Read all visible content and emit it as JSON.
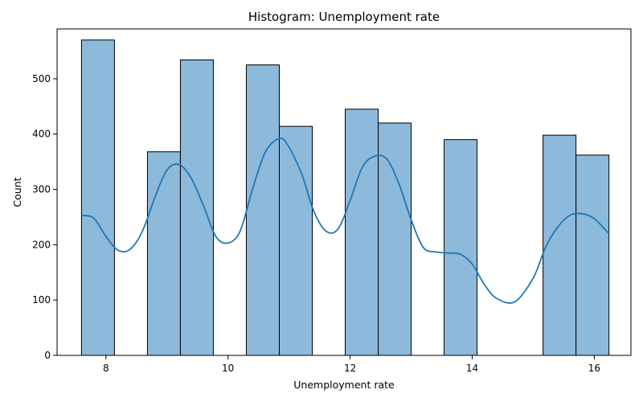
{
  "chart_data": {
    "type": "bar",
    "title": "Histogram: Unemployment rate",
    "xlabel": "Unemployment rate",
    "ylabel": "Count",
    "xlim": [
      7.2,
      16.6
    ],
    "ylim": [
      0,
      590
    ],
    "xticks": [
      8,
      10,
      12,
      14,
      16
    ],
    "yticks": [
      0,
      100,
      200,
      300,
      400,
      500
    ],
    "grid": false,
    "bar_color": "#8db9db",
    "line_color": "#1f77b4",
    "bins": [
      {
        "x0": 7.6,
        "x1": 8.14,
        "count": 570
      },
      {
        "x0": 8.14,
        "x1": 8.68,
        "count": 0
      },
      {
        "x0": 8.68,
        "x1": 9.22,
        "count": 368
      },
      {
        "x0": 9.22,
        "x1": 9.76,
        "count": 534
      },
      {
        "x0": 9.76,
        "x1": 10.3,
        "count": 0
      },
      {
        "x0": 10.3,
        "x1": 10.84,
        "count": 525
      },
      {
        "x0": 10.84,
        "x1": 11.38,
        "count": 414
      },
      {
        "x0": 11.38,
        "x1": 11.92,
        "count": 0
      },
      {
        "x0": 11.92,
        "x1": 12.46,
        "count": 445
      },
      {
        "x0": 12.46,
        "x1": 13.0,
        "count": 420
      },
      {
        "x0": 13.0,
        "x1": 13.54,
        "count": 0
      },
      {
        "x0": 13.54,
        "x1": 14.08,
        "count": 390
      },
      {
        "x0": 14.08,
        "x1": 14.62,
        "count": 0
      },
      {
        "x0": 14.62,
        "x1": 15.16,
        "count": 0
      },
      {
        "x0": 15.16,
        "x1": 15.7,
        "count": 398
      },
      {
        "x0": 15.7,
        "x1": 16.24,
        "count": 362
      }
    ],
    "kde": {
      "x": [
        7.6,
        7.8,
        8.0,
        8.2,
        8.4,
        8.6,
        8.8,
        9.0,
        9.2,
        9.4,
        9.6,
        9.8,
        10.0,
        10.2,
        10.4,
        10.6,
        10.8,
        10.95,
        11.2,
        11.4,
        11.6,
        11.8,
        12.0,
        12.2,
        12.4,
        12.6,
        12.8,
        13.0,
        13.2,
        13.4,
        13.6,
        13.8,
        14.0,
        14.2,
        14.4,
        14.7,
        15.0,
        15.2,
        15.4,
        15.6,
        15.8,
        16.0,
        16.24
      ],
      "y": [
        253,
        248,
        215,
        190,
        192,
        225,
        285,
        335,
        345,
        320,
        270,
        215,
        203,
        225,
        300,
        365,
        390,
        385,
        330,
        262,
        225,
        228,
        280,
        340,
        360,
        355,
        310,
        245,
        195,
        187,
        185,
        183,
        165,
        128,
        103,
        97,
        140,
        195,
        232,
        253,
        256,
        247,
        220
      ]
    }
  }
}
